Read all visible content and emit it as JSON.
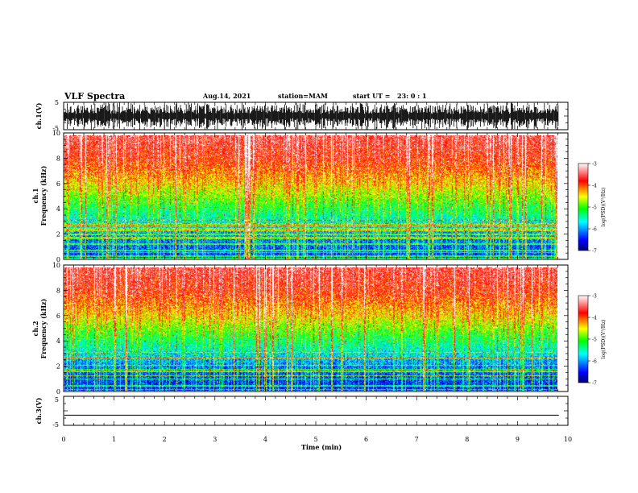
{
  "header": {
    "title": "VLF Spectra",
    "date": "Aug.14, 2021",
    "station": "station=MAM",
    "start_ut": "start UT =",
    "start_time": "23: 0 : 1"
  },
  "chart_data": [
    {
      "type": "line",
      "name": "ch.1 waveform",
      "ylabel": "ch.1(V)",
      "ylim": [
        -5,
        5
      ],
      "yticks": [
        "5",
        "-5"
      ],
      "xlim": [
        0,
        10
      ],
      "data_extent_min": [
        0,
        9.82
      ],
      "description_of_values": "dense impulsive signal spanning full range"
    },
    {
      "type": "heatmap",
      "name": "ch.1 spectrogram",
      "ylabel": "ch.1 Frequency (kHz)",
      "ylim": [
        0,
        10
      ],
      "yticks": [
        "0",
        "2",
        "4",
        "6",
        "8",
        "10"
      ],
      "xlim": [
        0,
        10
      ],
      "colorbar": {
        "label": "log(PSD)(V²/Hz)",
        "range": [
          -7,
          -3
        ],
        "ticks": [
          "-3",
          "-4",
          "-5",
          "-6",
          "-7"
        ],
        "colors": [
          "#000080",
          "#0000ff",
          "#00ffff",
          "#00ff00",
          "#ffff00",
          "#ff0000",
          "#ffffff"
        ]
      },
      "profile_freq_khz": [
        0,
        2,
        4,
        6,
        8,
        10
      ],
      "profile_log_psd": [
        -6.6,
        -6.2,
        -5.4,
        -4.6,
        -4.0,
        -3.7
      ]
    },
    {
      "type": "heatmap",
      "name": "ch.2 spectrogram",
      "ylabel": "ch.2 Frequency (kHz)",
      "ylim": [
        0,
        10
      ],
      "yticks": [
        "0",
        "2",
        "4",
        "6",
        "8",
        "10"
      ],
      "xlim": [
        0,
        10
      ],
      "colorbar": {
        "label": "log(PSD)(V²/Hz)",
        "range": [
          -7,
          -3
        ],
        "ticks": [
          "-3",
          "-4",
          "-5",
          "-6",
          "-7"
        ]
      },
      "profile_freq_khz": [
        0,
        2,
        4,
        6,
        8,
        10
      ],
      "profile_log_psd": [
        -6.7,
        -6.3,
        -5.5,
        -4.6,
        -4.0,
        -3.7
      ]
    },
    {
      "type": "line",
      "name": "ch.3 waveform",
      "ylabel": "ch.3(V)",
      "ylim": [
        -5,
        5
      ],
      "yticks": [
        "5",
        "-5"
      ],
      "x": [
        0,
        9.82
      ],
      "y": [
        -1.5,
        -1.5
      ]
    }
  ],
  "xaxis": {
    "label": "Time (min)",
    "ticks": [
      "0",
      "1",
      "2",
      "3",
      "4",
      "5",
      "6",
      "7",
      "8",
      "9",
      "10"
    ]
  }
}
